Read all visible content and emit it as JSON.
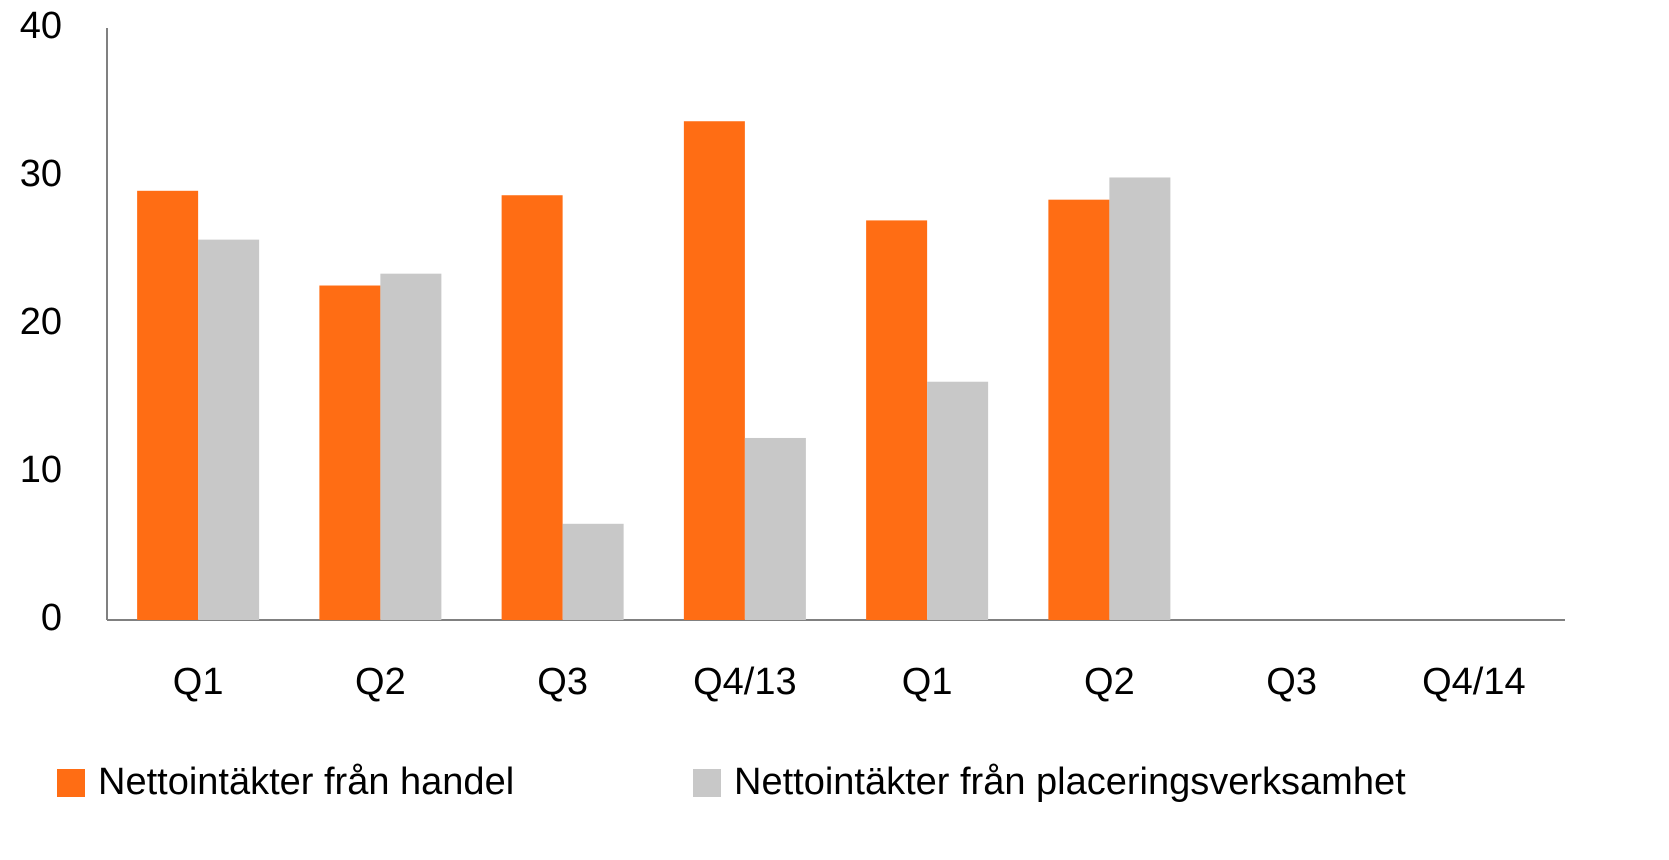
{
  "chart_data": {
    "type": "bar",
    "categories": [
      "Q1",
      "Q2",
      "Q3",
      "Q4/13",
      "Q1",
      "Q2",
      "Q3",
      "Q4/14"
    ],
    "series": [
      {
        "name": "Nettointäkter från handel",
        "color": "#ff6d14",
        "values": [
          29.0,
          22.6,
          28.7,
          33.7,
          27.0,
          28.4,
          null,
          null
        ]
      },
      {
        "name": "Nettointäkter från placeringsverksamhet",
        "color": "#c8c8c8",
        "values": [
          25.7,
          23.4,
          6.5,
          12.3,
          16.1,
          29.9,
          null,
          null
        ]
      }
    ],
    "ylim": [
      0,
      40
    ],
    "yticks": [
      0,
      10,
      20,
      30,
      40
    ],
    "grid": false,
    "legend": "bottom"
  }
}
